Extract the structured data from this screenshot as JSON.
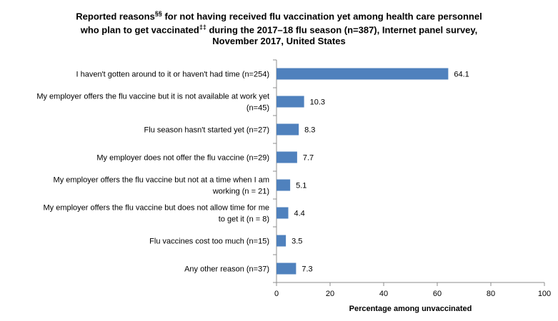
{
  "chart_data": {
    "type": "bar",
    "orientation": "horizontal",
    "title_lines": [
      [
        "Reported reasons",
        "§§",
        " for not having received flu vaccination yet among health care personnel"
      ],
      [
        "who plan to get vaccinated",
        "‡‡",
        " during the 2017–18 flu season (n=387), Internet panel survey,"
      ],
      [
        "November 2017, United States",
        "",
        ""
      ]
    ],
    "categories": [
      [
        "I haven't gotten around to it or haven't had time (n=254)"
      ],
      [
        "My employer offers the flu vaccine but it is not available at work yet",
        "(n=45)"
      ],
      [
        "Flu season hasn't started yet (n=27)"
      ],
      [
        "My employer does not offer the flu vaccine (n=29)"
      ],
      [
        "My employer offers the flu vaccine but not at a time when I am",
        "working (n = 21)"
      ],
      [
        "My employer offers the flu vaccine but does not allow time for me",
        "to get it (n = 8)"
      ],
      [
        "Flu vaccines cost too much (n=15)"
      ],
      [
        "Any other reason (n=37)"
      ]
    ],
    "values": [
      64.1,
      10.3,
      8.3,
      7.7,
      5.1,
      4.4,
      3.5,
      7.3
    ],
    "value_labels": [
      "64.1",
      "10.3",
      "8.3",
      "7.7",
      "5.1",
      "4.4",
      "3.5",
      "7.3"
    ],
    "xlabel": "Percentage among unvaccinated",
    "xlim": [
      0,
      100
    ],
    "xticks": [
      0,
      20,
      40,
      60,
      80,
      100
    ],
    "bar_color": "#4F81BD",
    "grid": false,
    "legend": "none"
  }
}
